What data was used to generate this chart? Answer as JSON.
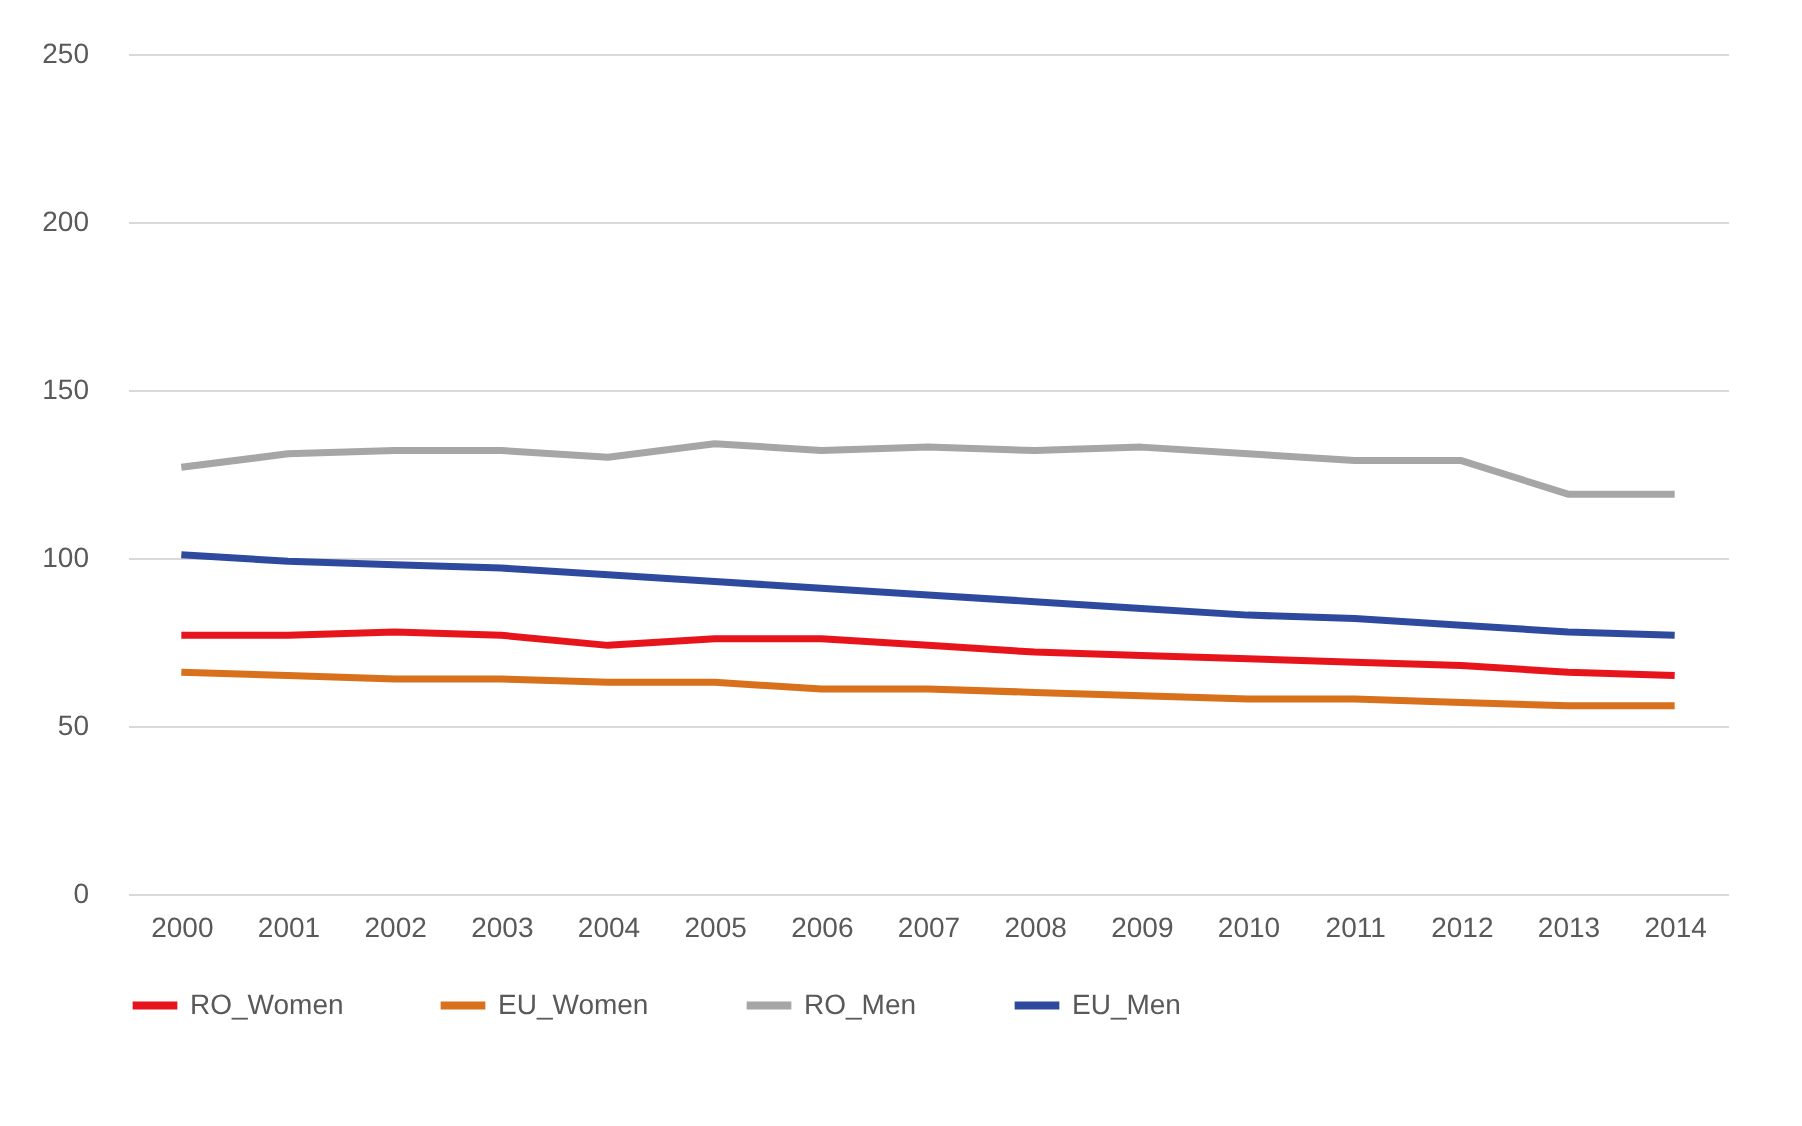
{
  "chart_data": {
    "type": "line",
    "categories": [
      "2000",
      "2001",
      "2002",
      "2003",
      "2004",
      "2005",
      "2006",
      "2007",
      "2008",
      "2009",
      "2010",
      "2011",
      "2012",
      "2013",
      "2014"
    ],
    "series": [
      {
        "name": "RO_Women",
        "color": "#e8141c",
        "values": [
          77,
          77,
          78,
          77,
          74,
          76,
          76,
          74,
          72,
          71,
          70,
          69,
          68,
          66,
          65
        ]
      },
      {
        "name": "EU_Women",
        "color": "#d8701c",
        "values": [
          66,
          65,
          64,
          64,
          63,
          63,
          61,
          61,
          60,
          59,
          58,
          58,
          57,
          56,
          56
        ]
      },
      {
        "name": "RO_Men",
        "color": "#a6a6a6",
        "values": [
          127,
          131,
          132,
          132,
          130,
          134,
          132,
          133,
          132,
          133,
          131,
          129,
          129,
          119,
          119
        ]
      },
      {
        "name": "EU_Men",
        "color": "#2e4a9e",
        "values": [
          101,
          99,
          98,
          97,
          95,
          93,
          91,
          89,
          87,
          85,
          83,
          82,
          80,
          78,
          77
        ]
      }
    ],
    "ylim": [
      0,
      250
    ],
    "yticks": [
      0,
      50,
      100,
      150,
      200,
      250
    ],
    "grid": "y",
    "legend": "bottom",
    "marker": "none",
    "line_style": "solid"
  }
}
